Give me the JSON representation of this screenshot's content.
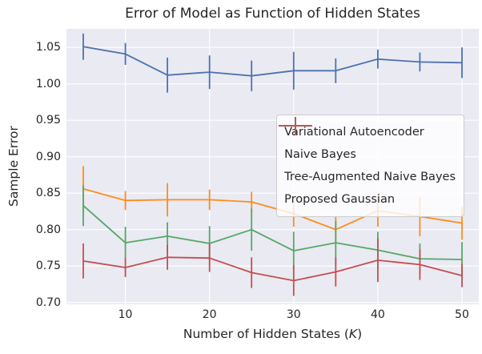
{
  "chart_data": {
    "type": "line",
    "title": "Error of Model as Function of Hidden States",
    "ylabel": "Sample Error",
    "xlabel_prefix": "Number of Hidden States (",
    "xlabel_var": "K",
    "xlabel_suffix": ")",
    "x": [
      5,
      10,
      15,
      20,
      25,
      30,
      35,
      40,
      45,
      50
    ],
    "xlim": [
      3.0,
      52.0
    ],
    "ylim": [
      0.6975,
      1.0755
    ],
    "xticks": {
      "values": [
        10,
        20,
        30,
        40,
        50
      ],
      "labels": [
        "10",
        "20",
        "30",
        "40",
        "50"
      ]
    },
    "yticks": {
      "values": [
        0.7,
        0.75,
        0.8,
        0.85,
        0.9,
        0.95,
        1.0,
        1.05
      ],
      "labels": [
        "0.70",
        "0.75",
        "0.80",
        "0.85",
        "0.90",
        "0.95",
        "1.00",
        "1.05"
      ]
    },
    "grid": true,
    "plot_bg": "#eaeaf2",
    "grid_color": "#ffffff",
    "legend_position": "center right",
    "series": [
      {
        "name": "Variational Autoencoder",
        "color": "#4c72b0",
        "values": [
          1.051,
          1.041,
          1.012,
          1.016,
          1.011,
          1.018,
          1.018,
          1.034,
          1.03,
          1.029
        ],
        "errors": [
          0.018,
          0.015,
          0.024,
          0.023,
          0.021,
          0.026,
          0.017,
          0.013,
          0.013,
          0.021
        ]
      },
      {
        "name": "Naive Bayes",
        "color": "#ff8c1a",
        "values": [
          0.856,
          0.84,
          0.841,
          0.841,
          0.838,
          0.822,
          0.8,
          0.826,
          0.818,
          0.809
        ],
        "errors": [
          0.031,
          0.013,
          0.023,
          0.014,
          0.014,
          0.018,
          0.018,
          0.022,
          0.027,
          0.023
        ]
      },
      {
        "name": "Tree-Augmented Naive Bayes",
        "color": "#55a868",
        "values": [
          0.833,
          0.782,
          0.791,
          0.781,
          0.8,
          0.771,
          0.782,
          0.772,
          0.76,
          0.759
        ],
        "errors": [
          0.028,
          0.022,
          0.019,
          0.024,
          0.029,
          0.026,
          0.03,
          0.025,
          0.021,
          0.024
        ]
      },
      {
        "name": "Proposed Gaussian",
        "color": "#c44e52",
        "values": [
          0.757,
          0.748,
          0.762,
          0.761,
          0.741,
          0.73,
          0.742,
          0.758,
          0.752,
          0.737
        ],
        "errors": [
          0.024,
          0.013,
          0.017,
          0.019,
          0.021,
          0.021,
          0.02,
          0.03,
          0.021,
          0.016
        ]
      }
    ]
  }
}
